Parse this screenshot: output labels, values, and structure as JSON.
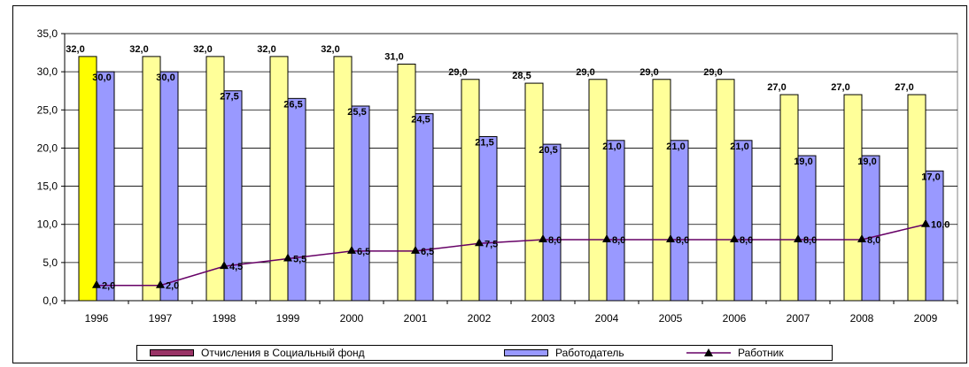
{
  "chart_data": {
    "type": "bar",
    "categories": [
      "1996",
      "1997",
      "1998",
      "1999",
      "2000",
      "2001",
      "2002",
      "2003",
      "2004",
      "2005",
      "2006",
      "2007",
      "2008",
      "2009"
    ],
    "series": [
      {
        "name": "Отчисления в Социальный фонд",
        "kind": "bar",
        "values": [
          32.0,
          32.0,
          32.0,
          32.0,
          32.0,
          31.0,
          29.0,
          28.5,
          29.0,
          29.0,
          29.0,
          27.0,
          27.0,
          27.0
        ],
        "labels": [
          "32,0",
          "32,0",
          "32,0",
          "32,0",
          "32,0",
          "31,0",
          "29,0",
          "28,5",
          "29,0",
          "29,0",
          "29,0",
          "27,0",
          "27,0",
          "27,0"
        ],
        "color": "#ffff99",
        "highlight_color": "#ffff00"
      },
      {
        "name": "Работодатель",
        "kind": "bar",
        "values": [
          30.0,
          30.0,
          27.5,
          26.5,
          25.5,
          24.5,
          21.5,
          20.5,
          21.0,
          21.0,
          21.0,
          19.0,
          19.0,
          17.0
        ],
        "labels": [
          "30,0",
          "30,0",
          "27,5",
          "26,5",
          "25,5",
          "24,5",
          "21,5",
          "20,5",
          "21,0",
          "21,0",
          "21,0",
          "19,0",
          "19,0",
          "17,0"
        ],
        "color": "#9999ff"
      },
      {
        "name": "Работник",
        "kind": "line",
        "values": [
          2.0,
          2.0,
          4.5,
          5.5,
          6.5,
          6.5,
          7.5,
          8.0,
          8.0,
          8.0,
          8.0,
          8.0,
          8.0,
          10.0
        ],
        "labels": [
          "2,0",
          "2,0",
          "4,5",
          "5,5",
          "6,5",
          "6,5",
          "7,5",
          "8,0",
          "8,0",
          "8,0",
          "8,0",
          "8,0",
          "8,0",
          "10,0"
        ],
        "color": "#660066"
      }
    ],
    "yticks": [
      "0,0",
      "5,0",
      "10,0",
      "15,0",
      "20,0",
      "25,0",
      "30,0",
      "35,0"
    ],
    "ylim": [
      0,
      35
    ],
    "grid": true,
    "legend_position": "bottom",
    "legend": {
      "item1": "Отчисления в Социальный фонд",
      "item2": "Работодатель",
      "item3": "Работник",
      "swatch1_color": "#993366",
      "swatch2_color": "#9999ff",
      "line3_color": "#660066"
    }
  }
}
